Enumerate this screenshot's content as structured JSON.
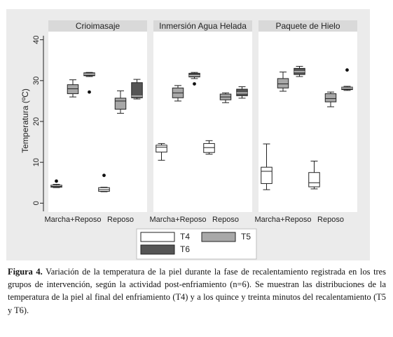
{
  "chart_data": {
    "type": "box",
    "ylabel": "Temperatura (ºC)",
    "ylim": [
      -2,
      42
    ],
    "yticks": [
      0,
      10,
      20,
      30,
      40
    ],
    "categories": [
      "Marcha+Reposo",
      "Reposo"
    ],
    "panels": [
      {
        "title": "Crioimasaje",
        "groups": [
          {
            "category": "Marcha+Reposo",
            "boxes": [
              {
                "series": "T4",
                "min": 3.8,
                "q1": 3.9,
                "median": 4.1,
                "q3": 4.4,
                "max": 4.6,
                "outliers": [
                  5.4
                ]
              },
              {
                "series": "T5",
                "min": 26.0,
                "q1": 26.8,
                "median": 28.0,
                "q3": 29.0,
                "max": 30.2,
                "outliers": []
              },
              {
                "series": "T6",
                "min": 31.0,
                "q1": 31.2,
                "median": 31.6,
                "q3": 31.9,
                "max": 32.0,
                "outliers": [
                  27.2
                ]
              }
            ]
          },
          {
            "category": "Reposo",
            "boxes": [
              {
                "series": "T4",
                "min": 2.8,
                "q1": 2.9,
                "median": 3.3,
                "q3": 3.8,
                "max": 3.9,
                "outliers": [
                  6.8
                ]
              },
              {
                "series": "T5",
                "min": 22.0,
                "q1": 23.0,
                "median": 25.0,
                "q3": 25.7,
                "max": 27.5,
                "outliers": []
              },
              {
                "series": "T6",
                "min": 25.5,
                "q1": 25.8,
                "median": 26.2,
                "q3": 29.5,
                "max": 30.3,
                "outliers": []
              }
            ]
          }
        ]
      },
      {
        "title": "Inmersión Agua Helada",
        "groups": [
          {
            "category": "Marcha+Reposo",
            "boxes": [
              {
                "series": "T4",
                "min": 10.5,
                "q1": 12.5,
                "median": 13.7,
                "q3": 14.2,
                "max": 14.6,
                "outliers": []
              },
              {
                "series": "T5",
                "min": 25.0,
                "q1": 25.8,
                "median": 27.0,
                "q3": 28.2,
                "max": 28.8,
                "outliers": []
              },
              {
                "series": "T6",
                "min": 30.5,
                "q1": 30.9,
                "median": 31.2,
                "q3": 31.8,
                "max": 32.0,
                "outliers": [
                  29.2
                ]
              }
            ]
          },
          {
            "category": "Reposo",
            "boxes": [
              {
                "series": "T4",
                "min": 12.0,
                "q1": 12.4,
                "median": 13.6,
                "q3": 14.6,
                "max": 15.3,
                "outliers": []
              },
              {
                "series": "T5",
                "min": 24.6,
                "q1": 25.3,
                "median": 26.0,
                "q3": 26.7,
                "max": 27.0,
                "outliers": []
              },
              {
                "series": "T6",
                "min": 25.7,
                "q1": 26.3,
                "median": 27.0,
                "q3": 27.9,
                "max": 28.5,
                "outliers": []
              }
            ]
          }
        ]
      },
      {
        "title": "Paquete de Hielo",
        "groups": [
          {
            "category": "Marcha+Reposo",
            "boxes": [
              {
                "series": "T4",
                "min": 3.3,
                "q1": 4.8,
                "median": 7.8,
                "q3": 8.8,
                "max": 14.5,
                "outliers": []
              },
              {
                "series": "T5",
                "min": 27.4,
                "q1": 28.2,
                "median": 29.2,
                "q3": 30.5,
                "max": 32.1,
                "outliers": []
              },
              {
                "series": "T6",
                "min": 31.0,
                "q1": 31.5,
                "median": 32.2,
                "q3": 33.0,
                "max": 33.5,
                "outliers": []
              }
            ]
          },
          {
            "category": "Reposo",
            "boxes": [
              {
                "series": "T4",
                "min": 3.5,
                "q1": 4.0,
                "median": 5.0,
                "q3": 7.5,
                "max": 10.3,
                "outliers": []
              },
              {
                "series": "T5",
                "min": 23.6,
                "q1": 24.8,
                "median": 25.6,
                "q3": 26.8,
                "max": 27.2,
                "outliers": []
              },
              {
                "series": "T6",
                "min": 27.6,
                "q1": 27.8,
                "median": 28.2,
                "q3": 28.4,
                "max": 28.6,
                "outliers": [
                  32.6
                ]
              }
            ]
          }
        ]
      }
    ],
    "legend": {
      "placement": "bottom",
      "items": [
        {
          "series": "T4",
          "label": "T4",
          "color": "#ffffff"
        },
        {
          "series": "T5",
          "label": "T5",
          "color": "#a8a8a8"
        },
        {
          "series": "T6",
          "label": "T6",
          "color": "#555555"
        }
      ]
    },
    "colors": {
      "frame_bg": "#ebebeb",
      "panel_bg": "#ffffff",
      "strip_bg": "#d9d9d9",
      "outline": "#222222"
    }
  },
  "caption": {
    "label": "Figura 4.",
    "text": "Variación de la temperatura de la piel durante la fase de recalentamiento registrada en los tres grupos de intervención, según la actividad post-enfriamiento (n=6). Se muestran las distribuciones de la temperatura de la piel al final del enfriamiento (T4) y a los quince y treinta minutos del recalentamiento (T5 y T6)."
  }
}
